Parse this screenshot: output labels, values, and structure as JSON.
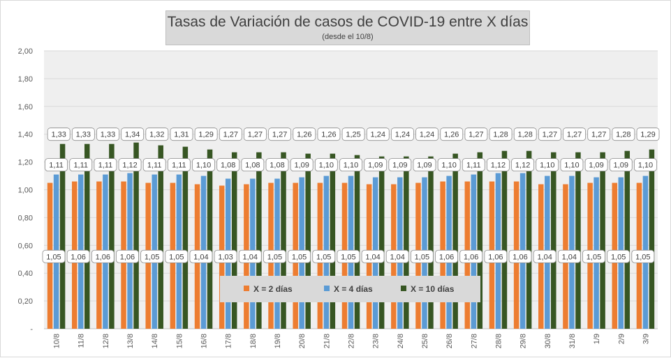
{
  "chart_data": {
    "type": "bar",
    "title": "Tasas de Variación de casos de COVID-19 entre X días",
    "subtitle": "(desde el 10/8)",
    "xlabel": "",
    "ylabel": "",
    "ylim": [
      0,
      2
    ],
    "y_ticks": [
      "-",
      "0,20",
      "0,40",
      "0,60",
      "0,80",
      "1,00",
      "1,20",
      "1,40",
      "1,60",
      "1,80",
      "2,00"
    ],
    "grid": true,
    "legend_position": "bottom-center (inside plot)",
    "categories": [
      "10/8",
      "11/8",
      "12/8",
      "13/8",
      "14/8",
      "15/8",
      "16/8",
      "17/8",
      "18/8",
      "19/8",
      "20/8",
      "21/8",
      "22/8",
      "23/8",
      "24/8",
      "25/8",
      "26/8",
      "27/8",
      "28/8",
      "29/8",
      "30/8",
      "31/8",
      "1/9",
      "2/9",
      "3/9"
    ],
    "series": [
      {
        "name": "X = 2 días",
        "color": "#ed7d31",
        "values": [
          1.05,
          1.06,
          1.06,
          1.06,
          1.05,
          1.05,
          1.04,
          1.03,
          1.04,
          1.05,
          1.05,
          1.05,
          1.05,
          1.04,
          1.04,
          1.05,
          1.06,
          1.06,
          1.06,
          1.06,
          1.04,
          1.04,
          1.05,
          1.05,
          1.05
        ],
        "labels": [
          "1,05",
          "1,06",
          "1,06",
          "1,06",
          "1,05",
          "1,05",
          "1,04",
          "1,03",
          "1,04",
          "1,05",
          "1,05",
          "1,05",
          "1,05",
          "1,04",
          "1,04",
          "1,05",
          "1,06",
          "1,06",
          "1,06",
          "1,06",
          "1,04",
          "1,04",
          "1,05",
          "1,05",
          "1,05"
        ]
      },
      {
        "name": "X = 4 días",
        "color": "#5b9bd5",
        "values": [
          1.11,
          1.11,
          1.11,
          1.12,
          1.11,
          1.11,
          1.1,
          1.08,
          1.08,
          1.08,
          1.09,
          1.1,
          1.1,
          1.09,
          1.09,
          1.09,
          1.1,
          1.11,
          1.12,
          1.12,
          1.1,
          1.1,
          1.09,
          1.09,
          1.1
        ],
        "labels": [
          "1,11",
          "1,11",
          "1,11",
          "1,12",
          "1,11",
          "1,11",
          "1,10",
          "1,08",
          "1,08",
          "1,08",
          "1,09",
          "1,10",
          "1,10",
          "1,09",
          "1,09",
          "1,09",
          "1,10",
          "1,11",
          "1,12",
          "1,12",
          "1,10",
          "1,10",
          "1,09",
          "1,09",
          "1,10"
        ]
      },
      {
        "name": "X = 10 días",
        "color": "#375623",
        "values": [
          1.33,
          1.33,
          1.33,
          1.34,
          1.32,
          1.31,
          1.29,
          1.27,
          1.27,
          1.27,
          1.26,
          1.26,
          1.25,
          1.24,
          1.24,
          1.24,
          1.26,
          1.27,
          1.28,
          1.28,
          1.27,
          1.27,
          1.27,
          1.28,
          1.29
        ],
        "labels": [
          "1,33",
          "1,33",
          "1,33",
          "1,34",
          "1,32",
          "1,31",
          "1,29",
          "1,27",
          "1,27",
          "1,27",
          "1,26",
          "1,26",
          "1,25",
          "1,24",
          "1,24",
          "1,24",
          "1,26",
          "1,27",
          "1,28",
          "1,28",
          "1,27",
          "1,27",
          "1,27",
          "1,28",
          "1,29"
        ]
      }
    ]
  }
}
